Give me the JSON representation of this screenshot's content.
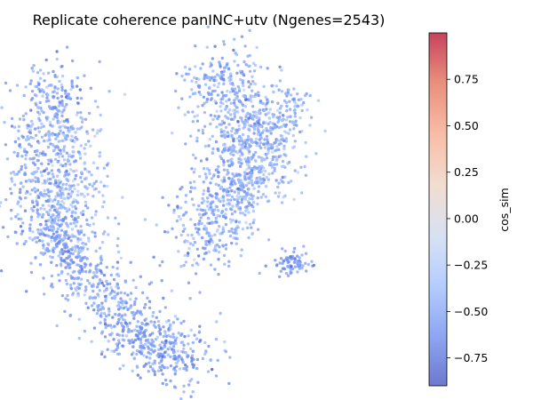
{
  "chart_data": {
    "type": "scatter",
    "title": "Replicate coherence panINC+utv (Ngenes=2543)",
    "point_count": 2543,
    "axes_visible": false,
    "value_range": [
      -0.9,
      1.0
    ],
    "colormap": {
      "name": "coolwarm",
      "alpha": 0.75,
      "stops": [
        "#3b4cc0",
        "#6788ee",
        "#9abbff",
        "#c9d7f0",
        "#edd1c2",
        "#f7a889",
        "#e26952",
        "#b40426"
      ]
    },
    "colorbar": {
      "label": "cos_sim",
      "range": [
        -0.9,
        1.0
      ],
      "ticks": [
        "0.75",
        "0.50",
        "0.25",
        "0.00",
        "−0.25",
        "−0.50",
        "−0.75"
      ],
      "tick_values": [
        0.75,
        0.5,
        0.25,
        0.0,
        -0.25,
        -0.5,
        -0.75
      ]
    },
    "clusters": [
      {
        "region": "left-arm",
        "share": 0.5,
        "value_mean": -0.52,
        "value_sd": 0.12,
        "path": [
          [
            0.08,
            0.92
          ],
          [
            0.05,
            0.78
          ],
          [
            0.03,
            0.62
          ],
          [
            0.06,
            0.48
          ],
          [
            0.1,
            0.4
          ],
          [
            0.15,
            0.32
          ],
          [
            0.22,
            0.22
          ],
          [
            0.3,
            0.12
          ],
          [
            0.38,
            0.06
          ],
          [
            0.46,
            0.05
          ]
        ],
        "width": 0.05
      },
      {
        "region": "left-upper-lobe",
        "share": 0.12,
        "value_mean": -0.38,
        "value_sd": 0.14,
        "center": [
          0.12,
          0.62
        ],
        "spread": [
          0.05,
          0.12
        ]
      },
      {
        "region": "right-lobe",
        "share": 0.38,
        "value_mean": -0.47,
        "value_sd": 0.13,
        "path": [
          [
            0.48,
            0.38
          ],
          [
            0.52,
            0.5
          ],
          [
            0.58,
            0.62
          ],
          [
            0.62,
            0.75
          ],
          [
            0.56,
            0.86
          ],
          [
            0.52,
            0.94
          ]
        ],
        "width": 0.06
      },
      {
        "region": "right-upper-arm",
        "share": 0.1,
        "value_mean": -0.42,
        "value_sd": 0.12,
        "path": [
          [
            0.6,
            0.55
          ],
          [
            0.66,
            0.66
          ],
          [
            0.7,
            0.78
          ],
          [
            0.72,
            0.86
          ]
        ],
        "width": 0.04
      },
      {
        "region": "right-tail",
        "share": 0.03,
        "value_mean": -0.55,
        "value_sd": 0.08,
        "center": [
          0.73,
          0.34
        ],
        "spread": [
          0.03,
          0.02
        ]
      }
    ]
  }
}
